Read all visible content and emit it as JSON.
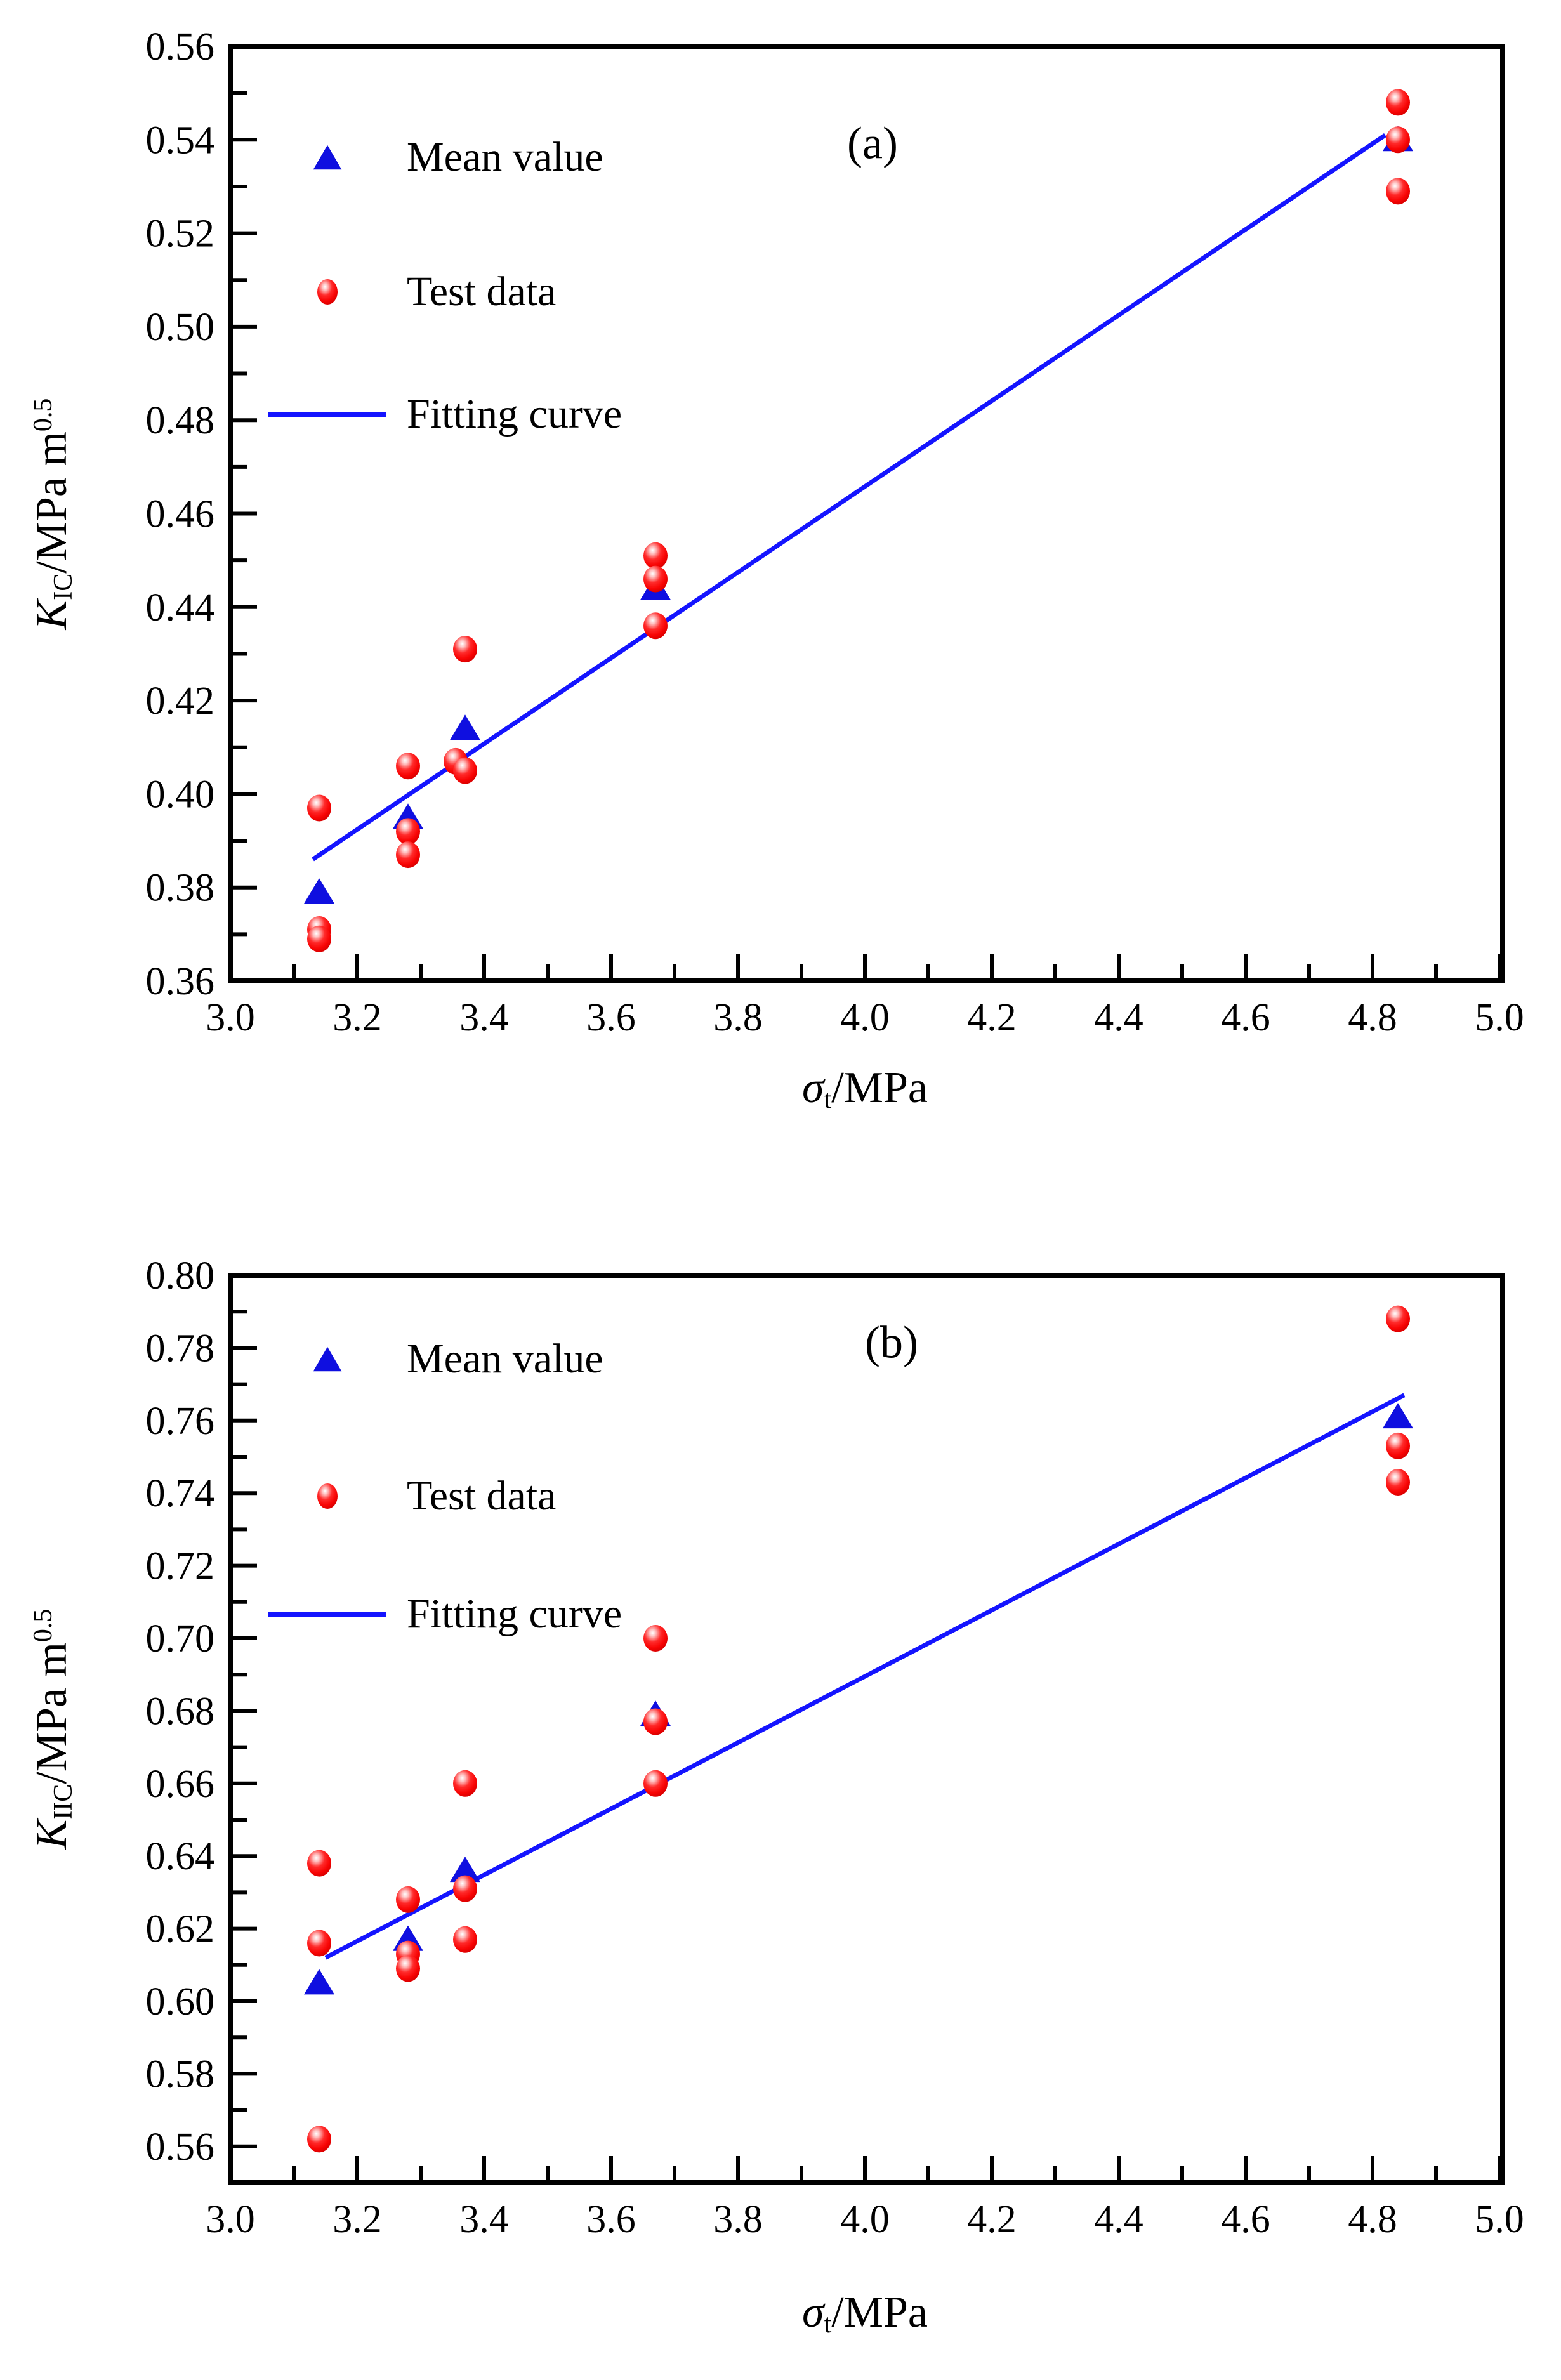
{
  "figure": {
    "background": "#ffffff",
    "text_color": "#000000",
    "accent_blue": "#1414ff",
    "accent_red": "#ff0000",
    "legend_position": "top-left"
  },
  "chart_data": [
    {
      "type": "scatter",
      "panel": "(a)",
      "title": "",
      "xlabel": "σt/MPa",
      "ylabel": "KIC/MPa m^0.5",
      "xlabel_parts": {
        "sigma": "σ",
        "sub": "t",
        "rest": "/MPa"
      },
      "ylabel_parts": {
        "k": "K",
        "sub": "IC",
        "rest": "/MPa m",
        "sup": "0.5"
      },
      "xlim": [
        3.0,
        5.0
      ],
      "ylim": [
        0.36,
        0.56
      ],
      "x_tick_labels": [
        "3.0",
        "3.2",
        "3.4",
        "3.6",
        "3.8",
        "4.0",
        "4.2",
        "4.4",
        "4.6",
        "4.8",
        "5.0"
      ],
      "y_tick_labels": [
        "0.36",
        "0.38",
        "0.40",
        "0.42",
        "0.44",
        "0.46",
        "0.48",
        "0.50",
        "0.52",
        "0.54",
        "0.56"
      ],
      "grid": false,
      "series": [
        {
          "name": "Mean value",
          "marker": "triangle",
          "color": "#0f0fe0",
          "points": [
            [
              3.14,
              0.379
            ],
            [
              3.28,
              0.395
            ],
            [
              3.37,
              0.414
            ],
            [
              3.67,
              0.444
            ],
            [
              4.84,
              0.54
            ]
          ]
        },
        {
          "name": "Test data",
          "marker": "sphere",
          "color": "#ff0000",
          "points": [
            [
              3.14,
              0.397
            ],
            [
              3.14,
              0.371
            ],
            [
              3.14,
              0.369
            ],
            [
              3.28,
              0.406
            ],
            [
              3.28,
              0.392
            ],
            [
              3.28,
              0.387
            ],
            [
              3.37,
              0.431
            ],
            [
              3.355,
              0.407
            ],
            [
              3.37,
              0.405
            ],
            [
              3.67,
              0.451
            ],
            [
              3.67,
              0.446
            ],
            [
              3.67,
              0.436
            ],
            [
              4.84,
              0.548
            ],
            [
              4.84,
              0.54
            ],
            [
              4.84,
              0.529
            ]
          ]
        },
        {
          "name": "Fitting curve",
          "marker": "line",
          "color": "#1414ff",
          "points": [
            [
              3.13,
              0.386
            ],
            [
              4.82,
              0.541
            ]
          ]
        }
      ]
    },
    {
      "type": "scatter",
      "panel": "(b)",
      "title": "",
      "xlabel": "σt/MPa",
      "ylabel": "KIIC/MPa m^0.5",
      "xlabel_parts": {
        "sigma": "σ",
        "sub": "t",
        "rest": "/MPa"
      },
      "ylabel_parts": {
        "k": "K",
        "sub": "IIC",
        "rest": "/MPa m",
        "sup": "0.5"
      },
      "xlim": [
        3.0,
        5.0
      ],
      "ylim": [
        0.55,
        0.8
      ],
      "x_tick_labels": [
        "3.0",
        "3.2",
        "3.4",
        "3.6",
        "3.8",
        "4.0",
        "4.2",
        "4.4",
        "4.6",
        "4.8",
        "5.0"
      ],
      "y_tick_labels": [
        "0.56",
        "0.58",
        "0.60",
        "0.62",
        "0.64",
        "0.66",
        "0.68",
        "0.70",
        "0.72",
        "0.74",
        "0.76",
        "0.78",
        "0.80"
      ],
      "grid": false,
      "series": [
        {
          "name": "Mean value",
          "marker": "triangle",
          "color": "#0f0fe0",
          "points": [
            [
              3.14,
              0.605
            ],
            [
              3.28,
              0.617
            ],
            [
              3.37,
              0.636
            ],
            [
              3.67,
              0.679
            ],
            [
              4.84,
              0.761
            ]
          ]
        },
        {
          "name": "Test data",
          "marker": "sphere",
          "color": "#ff0000",
          "points": [
            [
              3.14,
              0.638
            ],
            [
              3.14,
              0.616
            ],
            [
              3.14,
              0.562
            ],
            [
              3.28,
              0.628
            ],
            [
              3.28,
              0.613
            ],
            [
              3.28,
              0.609
            ],
            [
              3.37,
              0.66
            ],
            [
              3.37,
              0.631
            ],
            [
              3.37,
              0.617
            ],
            [
              3.67,
              0.7
            ],
            [
              3.67,
              0.677
            ],
            [
              3.67,
              0.66
            ],
            [
              4.84,
              0.788
            ],
            [
              4.84,
              0.753
            ],
            [
              4.84,
              0.743
            ]
          ]
        },
        {
          "name": "Fitting curve",
          "marker": "line",
          "color": "#1414ff",
          "points": [
            [
              3.15,
              0.612
            ],
            [
              4.85,
              0.767
            ]
          ]
        }
      ]
    }
  ]
}
